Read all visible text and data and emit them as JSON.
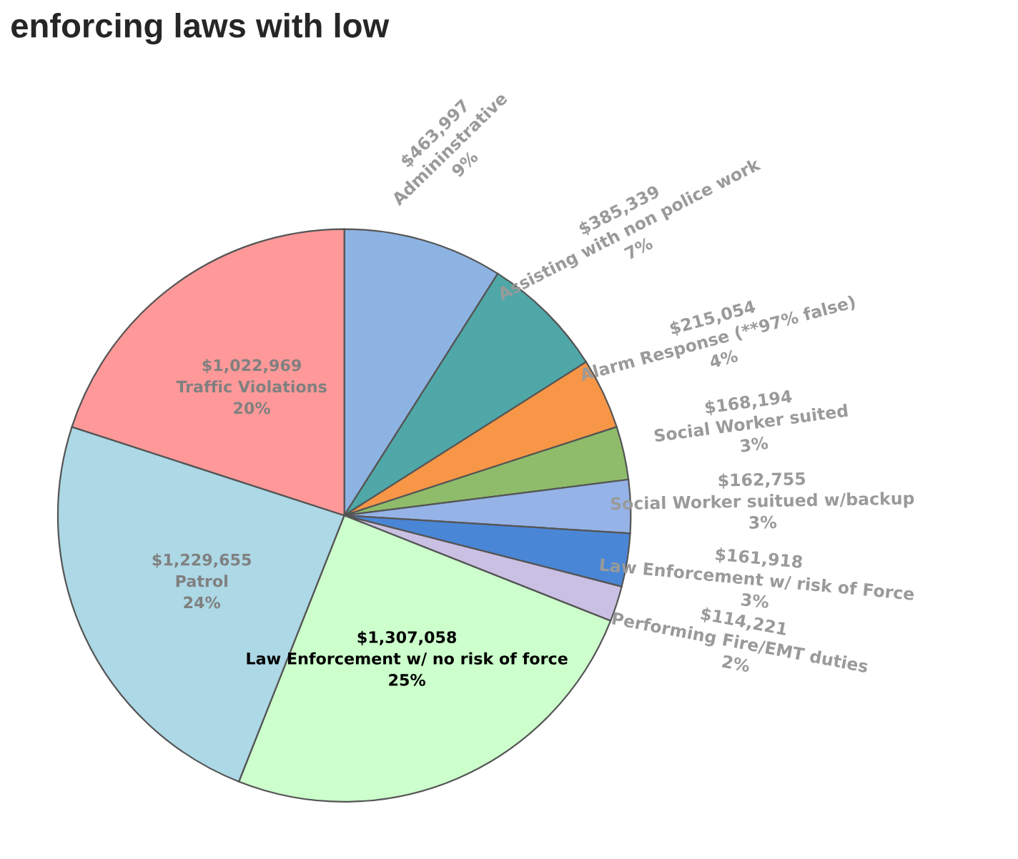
{
  "chart_data": {
    "type": "pie",
    "title": "enforcing laws with low",
    "categories": [
      "Admininstrative",
      "Assisting with non police work",
      "Alarm Response (**97% false)",
      "Social Worker suited",
      "Social Worker suitued w/backup",
      "Law Enforcement w/ risk of Force",
      "Performing Fire/EMT duties",
      "Law Enforcement w/ no risk of force",
      "Patrol",
      "Traffic Violations"
    ],
    "values": [
      9,
      7,
      4,
      3,
      3,
      3,
      2,
      25,
      24,
      20
    ],
    "value_labels": [
      "$463,997\n9%",
      "$385,339\n7%",
      "$215,054\n4%",
      "$168,194\n3%",
      "$162,755\n3%",
      "$161,918\n3%",
      "$114,221\n2%",
      "$1,307,058\n25%",
      "$1,229,655\n24%",
      "$1,022,969\n20%"
    ],
    "colors": [
      "#8db3e2",
      "#4fa7a8",
      "#f79646",
      "#8fbc6a",
      "#95b3e7",
      "#4a86d6",
      "#c9c0e3",
      "#ccffcc",
      "#add8e6",
      "#ff9999"
    ]
  }
}
